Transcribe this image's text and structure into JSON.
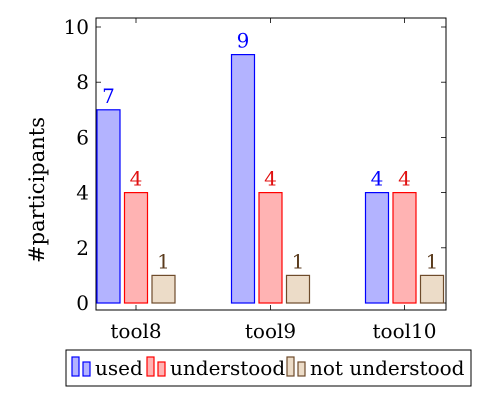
{
  "chart_data": {
    "type": "bar",
    "categories": [
      "tool8",
      "tool9",
      "tool10"
    ],
    "ylabel": "#participants",
    "xlabel": "",
    "ylim": [
      0,
      10
    ],
    "yticks": [
      0,
      2,
      4,
      6,
      8,
      10
    ],
    "grid": false,
    "legend_position": "bottom",
    "series": [
      {
        "name": "used",
        "values": [
          7,
          9,
          4
        ],
        "fill": "#b3b3ff",
        "stroke": "#0000ff",
        "label_color": "#0000ff"
      },
      {
        "name": "understood",
        "values": [
          4,
          4,
          4
        ],
        "fill": "#ffb3b3",
        "stroke": "#ff0000",
        "label_color": "#e01010"
      },
      {
        "name": "not understood",
        "values": [
          1,
          1,
          1
        ],
        "fill": "#ecdcc8",
        "stroke": "#6e4b2b",
        "label_color": "#5a3a1c"
      }
    ]
  }
}
